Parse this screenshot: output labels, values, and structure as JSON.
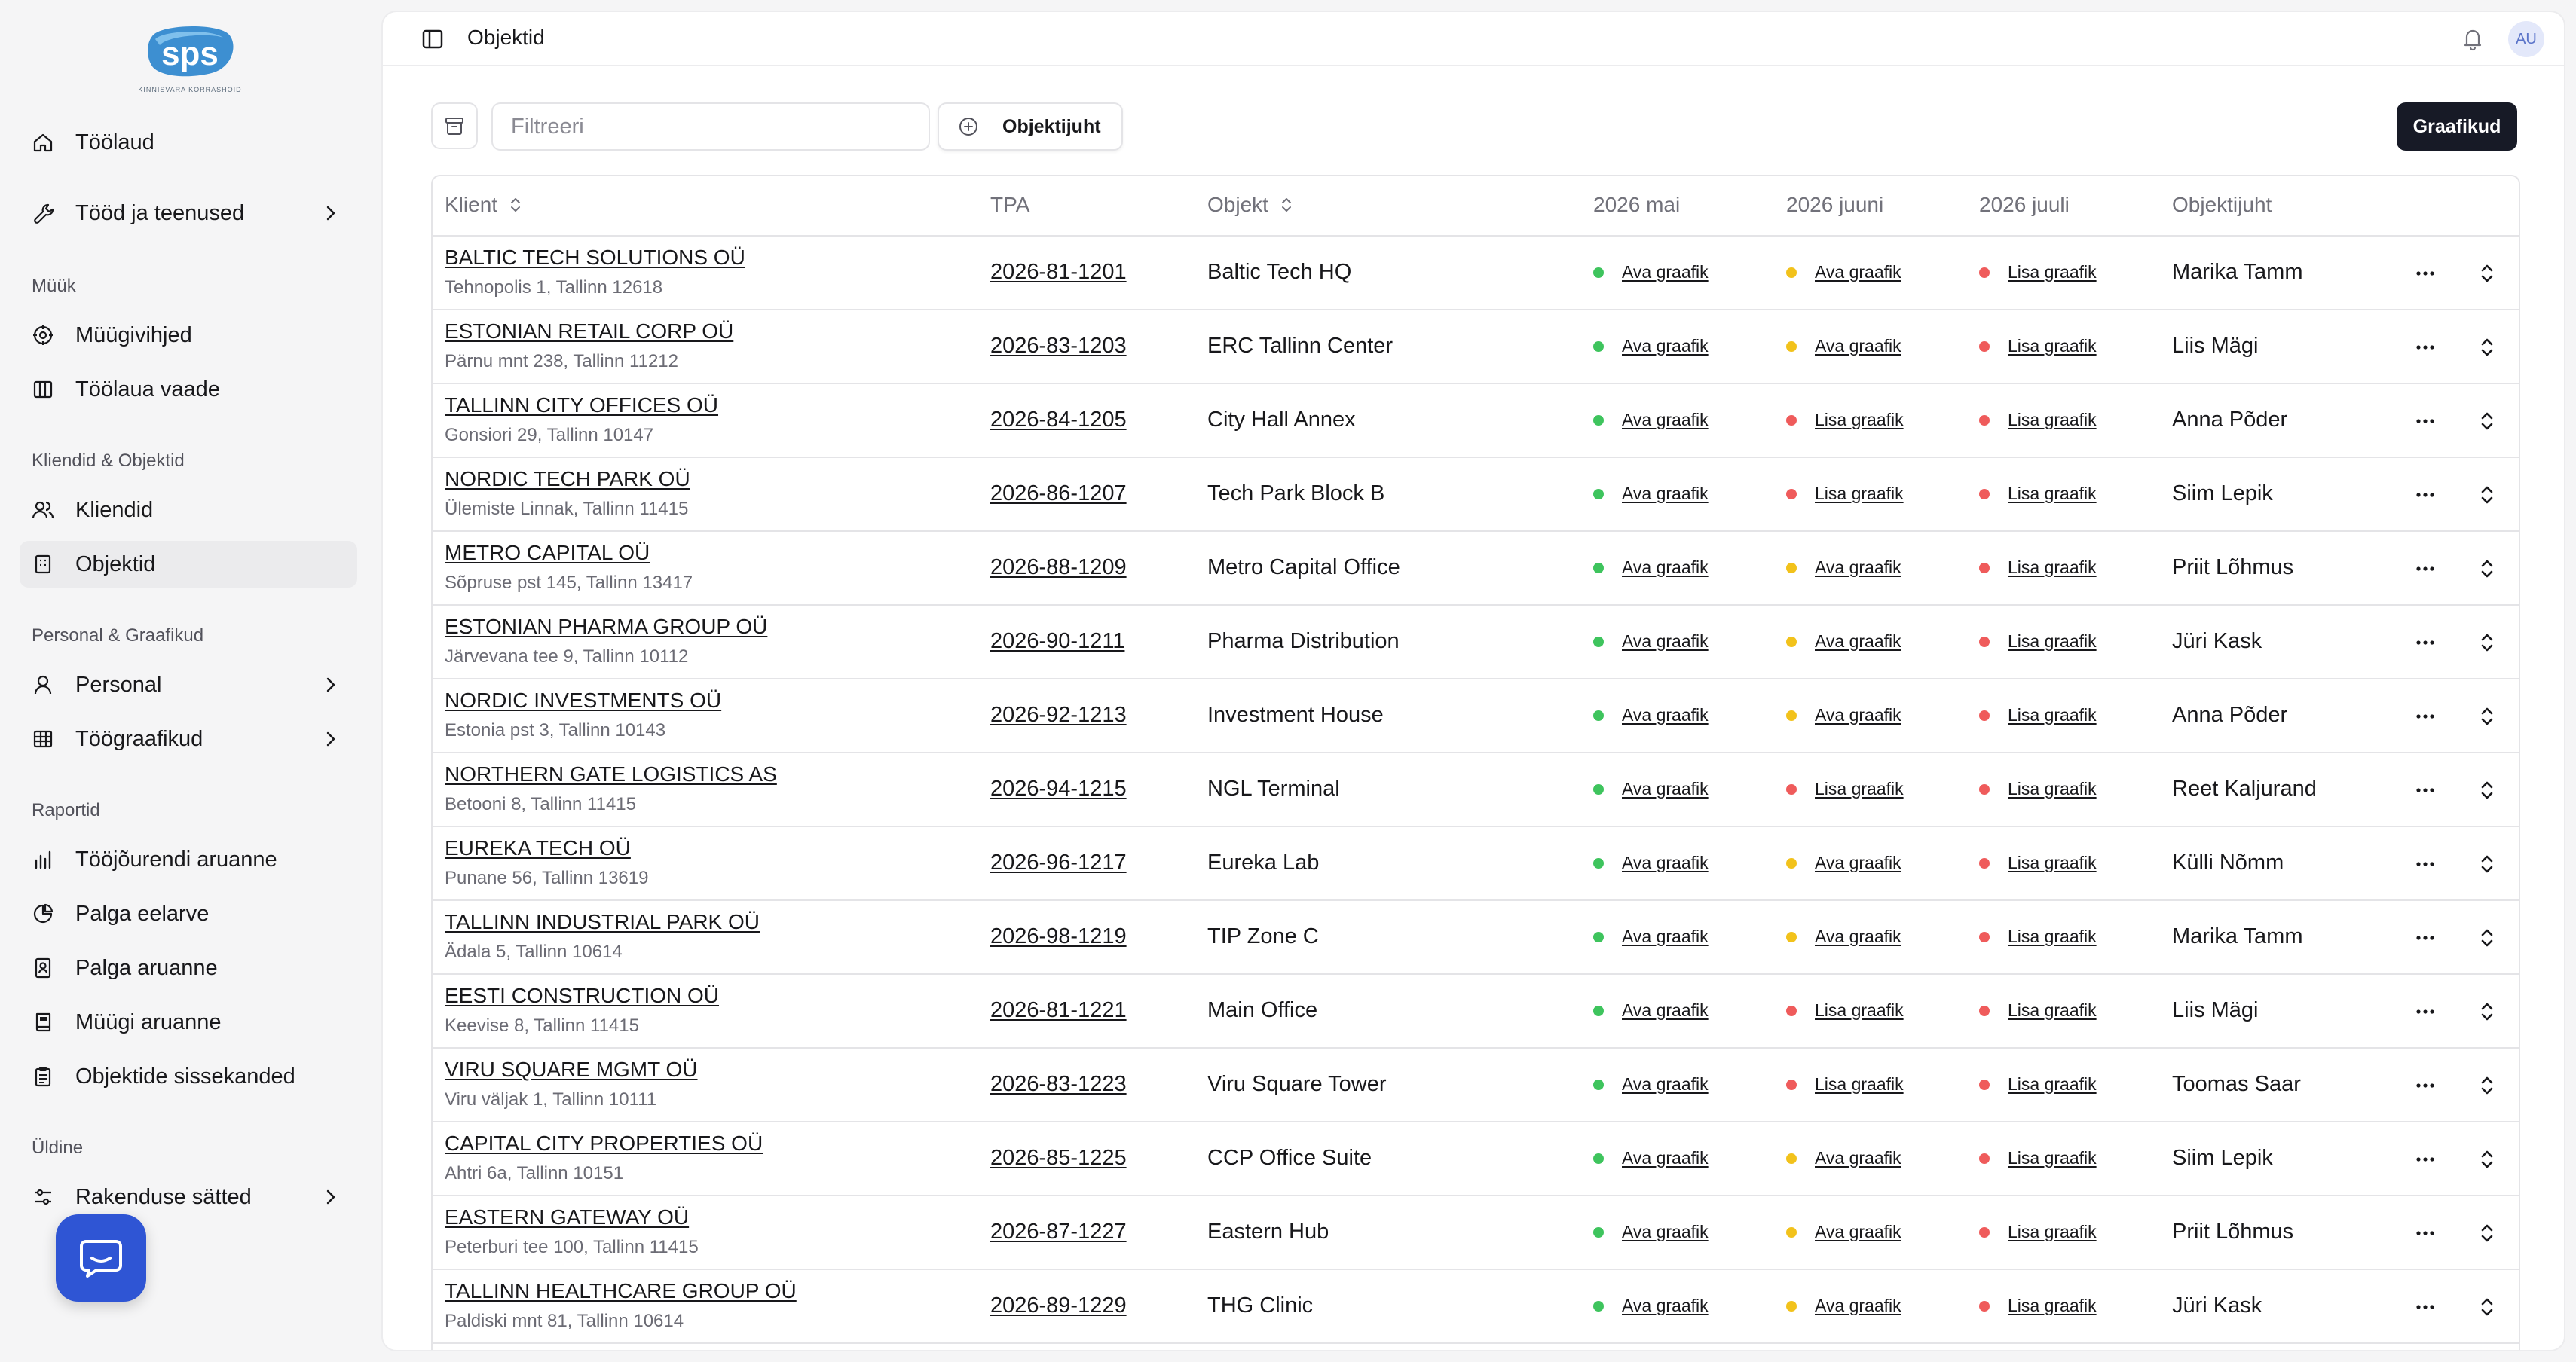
{
  "app": {
    "logo_text": "sps",
    "logo_subtitle": "KINNISVARA KORRASHOID"
  },
  "sidebar": {
    "top_items": [
      {
        "label": "Töölaud",
        "icon": "home-icon"
      },
      {
        "label": "Tööd ja teenused",
        "icon": "wrench-icon",
        "has_chevron": true
      }
    ],
    "sections": [
      {
        "title": "Müük",
        "items": [
          {
            "label": "Müügivihjed",
            "icon": "target-icon"
          },
          {
            "label": "Töölaua vaade",
            "icon": "columns-icon"
          }
        ]
      },
      {
        "title": "Kliendid & Objektid",
        "items": [
          {
            "label": "Kliendid",
            "icon": "users-icon"
          },
          {
            "label": "Objektid",
            "icon": "building-icon",
            "active": true
          }
        ]
      },
      {
        "title": "Personal & Graafikud",
        "items": [
          {
            "label": "Personal",
            "icon": "user-icon",
            "has_chevron": true
          },
          {
            "label": "Töögraafikud",
            "icon": "table-icon",
            "has_chevron": true
          }
        ]
      },
      {
        "title": "Raportid",
        "items": [
          {
            "label": "Tööjõurendi aruanne",
            "icon": "bar-chart-icon"
          },
          {
            "label": "Palga eelarve",
            "icon": "pie-chart-icon"
          },
          {
            "label": "Palga aruanne",
            "icon": "id-card-icon"
          },
          {
            "label": "Müügi aruanne",
            "icon": "book-icon"
          },
          {
            "label": "Objektide sissekanded",
            "icon": "clipboard-icon"
          }
        ]
      },
      {
        "title": "Üldine",
        "items": [
          {
            "label": "Rakenduse sätted",
            "icon": "sliders-icon",
            "has_chevron": true
          }
        ]
      }
    ]
  },
  "header": {
    "title": "Objektid",
    "avatar_initials": "AU"
  },
  "toolbar": {
    "filter_placeholder": "Filtreeri",
    "owner_button_label": "Objektijuht",
    "schedule_button_label": "Graafikud"
  },
  "table": {
    "columns": [
      "Klient",
      "TPA",
      "Objekt",
      "2026 mai",
      "2026 juuni",
      "2026 juuli",
      "Objektijuht"
    ],
    "rows": [
      {
        "client": "BALTIC TECH SOLUTIONS OÜ",
        "address": "Tehnopolis 1, Tallinn 12618",
        "tpa": "2026-81-1201",
        "object": "Baltic Tech HQ",
        "may": {
          "label": "Ava graafik",
          "status": "green"
        },
        "june": {
          "label": "Ava graafik",
          "status": "yellow"
        },
        "july": {
          "label": "Lisa graafik",
          "status": "red"
        },
        "manager": "Marika Tamm"
      },
      {
        "client": "ESTONIAN RETAIL CORP OÜ",
        "address": "Pärnu mnt 238, Tallinn 11212",
        "tpa": "2026-83-1203",
        "object": "ERC Tallinn Center",
        "may": {
          "label": "Ava graafik",
          "status": "green"
        },
        "june": {
          "label": "Ava graafik",
          "status": "yellow"
        },
        "july": {
          "label": "Lisa graafik",
          "status": "red"
        },
        "manager": "Liis Mägi"
      },
      {
        "client": "TALLINN CITY OFFICES OÜ",
        "address": "Gonsiori 29, Tallinn 10147",
        "tpa": "2026-84-1205",
        "object": "City Hall Annex",
        "may": {
          "label": "Ava graafik",
          "status": "green"
        },
        "june": {
          "label": "Lisa graafik",
          "status": "red"
        },
        "july": {
          "label": "Lisa graafik",
          "status": "red"
        },
        "manager": "Anna Põder"
      },
      {
        "client": "NORDIC TECH PARK OÜ",
        "address": "Ülemiste Linnak, Tallinn 11415",
        "tpa": "2026-86-1207",
        "object": "Tech Park Block B",
        "may": {
          "label": "Ava graafik",
          "status": "green"
        },
        "june": {
          "label": "Lisa graafik",
          "status": "red"
        },
        "july": {
          "label": "Lisa graafik",
          "status": "red"
        },
        "manager": "Siim Lepik"
      },
      {
        "client": "METRO CAPITAL OÜ",
        "address": "Sõpruse pst 145, Tallinn 13417",
        "tpa": "2026-88-1209",
        "object": "Metro Capital Office",
        "may": {
          "label": "Ava graafik",
          "status": "green"
        },
        "june": {
          "label": "Ava graafik",
          "status": "yellow"
        },
        "july": {
          "label": "Lisa graafik",
          "status": "red"
        },
        "manager": "Priit Lõhmus"
      },
      {
        "client": "ESTONIAN PHARMA GROUP OÜ",
        "address": "Järvevana tee 9, Tallinn 10112",
        "tpa": "2026-90-1211",
        "object": "Pharma Distribution",
        "may": {
          "label": "Ava graafik",
          "status": "green"
        },
        "june": {
          "label": "Ava graafik",
          "status": "yellow"
        },
        "july": {
          "label": "Lisa graafik",
          "status": "red"
        },
        "manager": "Jüri Kask"
      },
      {
        "client": "NORDIC INVESTMENTS OÜ",
        "address": "Estonia pst 3, Tallinn 10143",
        "tpa": "2026-92-1213",
        "object": "Investment House",
        "may": {
          "label": "Ava graafik",
          "status": "green"
        },
        "june": {
          "label": "Ava graafik",
          "status": "yellow"
        },
        "july": {
          "label": "Lisa graafik",
          "status": "red"
        },
        "manager": "Anna Põder"
      },
      {
        "client": "NORTHERN GATE LOGISTICS AS",
        "address": "Betooni 8, Tallinn 11415",
        "tpa": "2026-94-1215",
        "object": "NGL Terminal",
        "may": {
          "label": "Ava graafik",
          "status": "green"
        },
        "june": {
          "label": "Lisa graafik",
          "status": "red"
        },
        "july": {
          "label": "Lisa graafik",
          "status": "red"
        },
        "manager": "Reet Kaljurand"
      },
      {
        "client": "EUREKA TECH OÜ",
        "address": "Punane 56, Tallinn 13619",
        "tpa": "2026-96-1217",
        "object": "Eureka Lab",
        "may": {
          "label": "Ava graafik",
          "status": "green"
        },
        "june": {
          "label": "Ava graafik",
          "status": "yellow"
        },
        "july": {
          "label": "Lisa graafik",
          "status": "red"
        },
        "manager": "Külli Nõmm"
      },
      {
        "client": "TALLINN INDUSTRIAL PARK OÜ",
        "address": "Ädala 5, Tallinn 10614",
        "tpa": "2026-98-1219",
        "object": "TIP Zone C",
        "may": {
          "label": "Ava graafik",
          "status": "green"
        },
        "june": {
          "label": "Ava graafik",
          "status": "yellow"
        },
        "july": {
          "label": "Lisa graafik",
          "status": "red"
        },
        "manager": "Marika Tamm"
      },
      {
        "client": "EESTI CONSTRUCTION OÜ",
        "address": "Keevise 8, Tallinn 11415",
        "tpa": "2026-81-1221",
        "object": "Main Office",
        "may": {
          "label": "Ava graafik",
          "status": "green"
        },
        "june": {
          "label": "Lisa graafik",
          "status": "red"
        },
        "july": {
          "label": "Lisa graafik",
          "status": "red"
        },
        "manager": "Liis Mägi"
      },
      {
        "client": "VIRU SQUARE MGMT OÜ",
        "address": "Viru väljak 1, Tallinn 10111",
        "tpa": "2026-83-1223",
        "object": "Viru Square Tower",
        "may": {
          "label": "Ava graafik",
          "status": "green"
        },
        "june": {
          "label": "Lisa graafik",
          "status": "red"
        },
        "july": {
          "label": "Lisa graafik",
          "status": "red"
        },
        "manager": "Toomas Saar"
      },
      {
        "client": "CAPITAL CITY PROPERTIES OÜ",
        "address": "Ahtri 6a, Tallinn 10151",
        "tpa": "2026-85-1225",
        "object": "CCP Office Suite",
        "may": {
          "label": "Ava graafik",
          "status": "green"
        },
        "june": {
          "label": "Ava graafik",
          "status": "yellow"
        },
        "july": {
          "label": "Lisa graafik",
          "status": "red"
        },
        "manager": "Siim Lepik"
      },
      {
        "client": "EASTERN GATEWAY OÜ",
        "address": "Peterburi tee 100, Tallinn 11415",
        "tpa": "2026-87-1227",
        "object": "Eastern Hub",
        "may": {
          "label": "Ava graafik",
          "status": "green"
        },
        "june": {
          "label": "Ava graafik",
          "status": "yellow"
        },
        "july": {
          "label": "Lisa graafik",
          "status": "red"
        },
        "manager": "Priit Lõhmus"
      },
      {
        "client": "TALLINN HEALTHCARE GROUP OÜ",
        "address": "Paldiski mnt 81, Tallinn 10614",
        "tpa": "2026-89-1229",
        "object": "THG Clinic",
        "may": {
          "label": "Ava graafik",
          "status": "green"
        },
        "june": {
          "label": "Ava graafik",
          "status": "yellow"
        },
        "july": {
          "label": "Lisa graafik",
          "status": "red"
        },
        "manager": "Jüri Kask"
      }
    ]
  },
  "colors": {
    "green": "#3ec45d",
    "yellow": "#f2c21b",
    "red": "#ef5b5b",
    "primary_button": "#171a26",
    "chat_button": "#2f55d4"
  }
}
